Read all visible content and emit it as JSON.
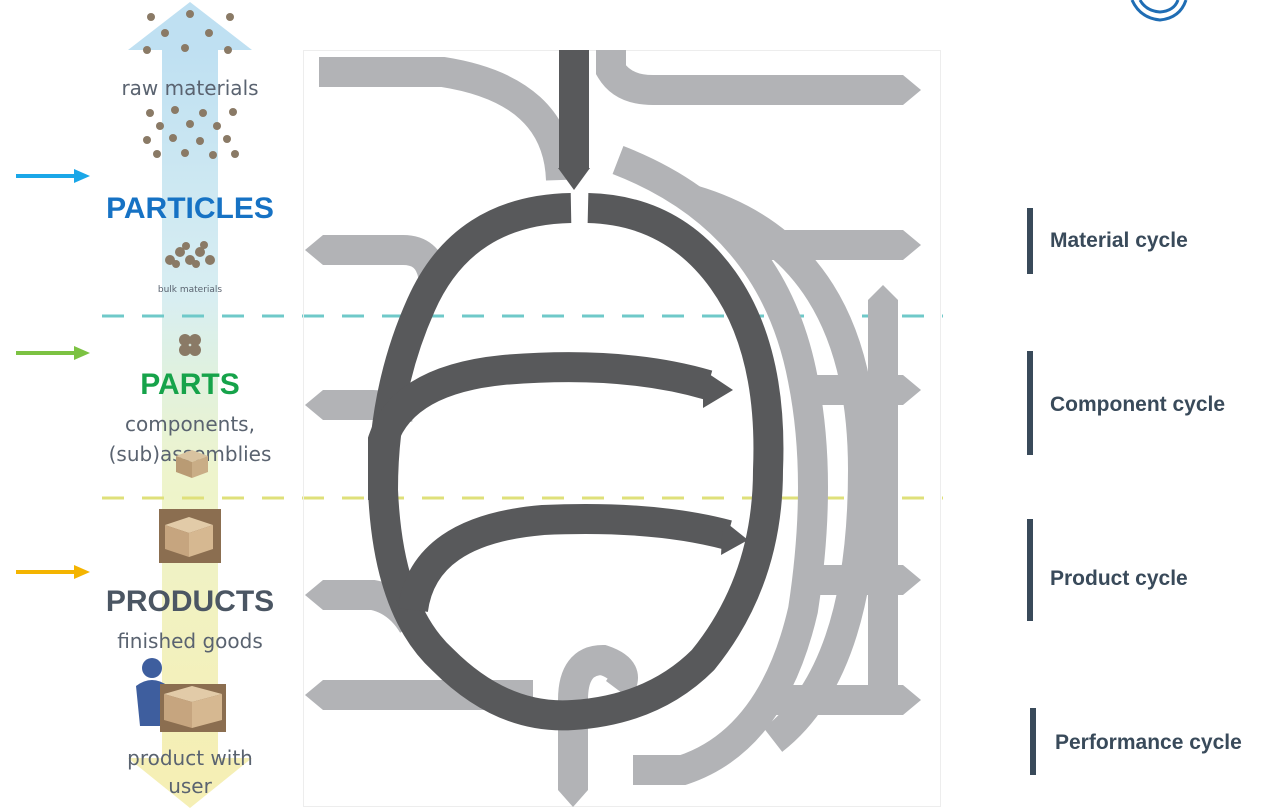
{
  "levels": {
    "raw": {
      "label": "raw materials"
    },
    "particles": {
      "title": "PARTICLES",
      "sub": "bulk materials"
    },
    "parts": {
      "title": "PARTS",
      "sub_line1": "components,",
      "sub_line2": "(sub)assemblies"
    },
    "products": {
      "title": "PRODUCTS",
      "sub": "finished goods"
    },
    "user": {
      "line1": "product with",
      "line2": "user"
    }
  },
  "cycles": [
    {
      "label": "Material cycle"
    },
    {
      "label": "Component cycle"
    },
    {
      "label": "Product cycle"
    },
    {
      "label": "Performance cycle"
    }
  ],
  "colors": {
    "particles": "#1672c4",
    "parts": "#16a34a",
    "products": "#4b5663",
    "arrow_blue": "#1aa7e8",
    "arrow_green": "#7cc242",
    "arrow_yellow": "#f4b400",
    "dash_teal": "#6fc9c9",
    "dash_yellow": "#dfe07a",
    "dark_flow": "#58595b",
    "light_flow": "#b2b3b6",
    "cycle_label": "#394a5a"
  },
  "icons": {
    "top_right": "circle-logo-icon"
  }
}
